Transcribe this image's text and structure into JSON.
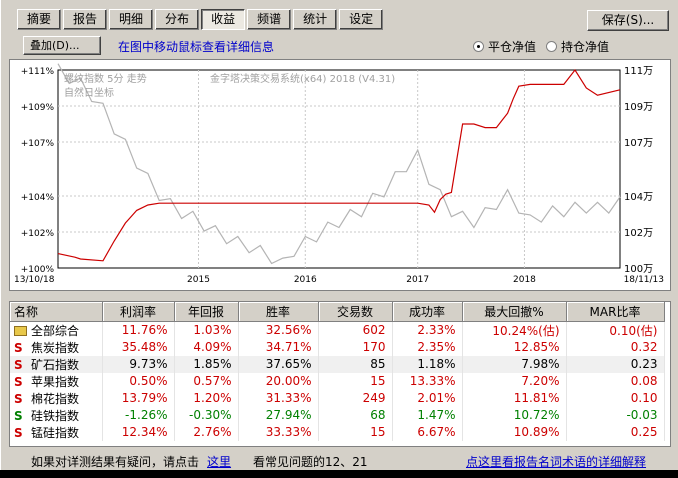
{
  "tabs": [
    {
      "label": "摘要"
    },
    {
      "label": "报告"
    },
    {
      "label": "明细"
    },
    {
      "label": "分布"
    },
    {
      "label": "收益",
      "active": true
    },
    {
      "label": "频谱"
    },
    {
      "label": "统计"
    },
    {
      "label": "设定"
    }
  ],
  "save_label": "保存(S)...",
  "overlay_label": "叠加(D)...",
  "hint_text": "在图中移动鼠标查看详细信息",
  "radio": {
    "option1": "平仓净值",
    "option2": "持仓净值",
    "selected": "option1"
  },
  "chart_data": {
    "type": "line",
    "overlay_title": "螺纹指数 5分 走势",
    "overlay_subtitle": "自然日坐标",
    "watermark": "金字塔决策交易系统(x64) 2018 (V4.31)",
    "left_axis": [
      "+111%",
      "+109%",
      "+107%",
      "+104%",
      "+102%",
      "+100%"
    ],
    "right_axis": [
      "111万",
      "109万",
      "107万",
      "104万",
      "102万",
      "100万"
    ],
    "x_labels": [
      "13/10/18",
      "2015",
      "2016",
      "2017",
      "2018",
      "18/11/13"
    ],
    "ylim": [
      100,
      111
    ],
    "colors": {
      "equity": "#cc0000",
      "price": "#b4b4b4",
      "grid": "#c8c8c8"
    },
    "series": [
      {
        "name": "平仓净值",
        "x": [
          0,
          0.03,
          0.04,
          0.08,
          0.1,
          0.12,
          0.14,
          0.16,
          0.18,
          0.22,
          0.3,
          0.4,
          0.5,
          0.6,
          0.62,
          0.64,
          0.66,
          0.67,
          0.68,
          0.69,
          0.7,
          0.72,
          0.74,
          0.76,
          0.78,
          0.79,
          0.8,
          0.81,
          0.82,
          0.84,
          0.85,
          0.86,
          0.87,
          0.9,
          0.92,
          0.94,
          0.96,
          1.0
        ],
        "y": [
          100.8,
          100.6,
          100.5,
          100.4,
          101.5,
          102.5,
          103.2,
          103.5,
          103.6,
          103.6,
          103.6,
          103.6,
          103.6,
          103.6,
          103.6,
          103.6,
          103.5,
          103.1,
          103.8,
          104.1,
          104.2,
          108.0,
          108.0,
          107.8,
          107.8,
          108.2,
          108.6,
          109.4,
          110.1,
          110.2,
          110.2,
          110.2,
          110.2,
          110.2,
          111.0,
          110.0,
          109.6,
          109.9
        ]
      },
      {
        "name": "螺纹指数",
        "x": [
          0,
          0.02,
          0.04,
          0.06,
          0.08,
          0.1,
          0.12,
          0.14,
          0.16,
          0.18,
          0.2,
          0.22,
          0.24,
          0.26,
          0.28,
          0.3,
          0.32,
          0.34,
          0.36,
          0.38,
          0.4,
          0.42,
          0.44,
          0.46,
          0.48,
          0.5,
          0.52,
          0.54,
          0.56,
          0.58,
          0.6,
          0.62,
          0.64,
          0.66,
          0.68,
          0.7,
          0.72,
          0.74,
          0.76,
          0.78,
          0.8,
          0.82,
          0.84,
          0.86,
          0.88,
          0.9,
          0.92,
          0.94,
          0.96,
          0.98,
          1.0
        ],
        "y": [
          111.0,
          110.6,
          110.2,
          109.6,
          108.8,
          107.8,
          106.8,
          105.9,
          104.9,
          104.1,
          103.5,
          103.1,
          102.8,
          102.4,
          102.0,
          101.7,
          101.4,
          101.2,
          100.9,
          100.6,
          100.2,
          101.0,
          101.4,
          101.8,
          102.2,
          102.6,
          102.9,
          103.2,
          103.8,
          104.3,
          105.0,
          105.7,
          106.2,
          105.0,
          104.0,
          103.2,
          102.8,
          102.6,
          103.0,
          103.6,
          104.0,
          103.4,
          102.6,
          102.9,
          103.1,
          103.2,
          103.3,
          103.4,
          103.3,
          103.4,
          103.6
        ]
      }
    ]
  },
  "table": {
    "columns": [
      "名称",
      "利润率",
      "年回报",
      "胜率",
      "交易数",
      "成功率",
      "最大回撤%",
      "MAR比率"
    ],
    "rows": [
      {
        "icon": "folder",
        "name": "全部综合",
        "cells": [
          "11.76%",
          "1.03%",
          "32.56%",
          "602",
          "2.33%",
          "10.24%(估)",
          "0.10(估)"
        ],
        "color": "red"
      },
      {
        "icon": "S",
        "name": "焦炭指数",
        "cells": [
          "35.48%",
          "4.09%",
          "34.71%",
          "170",
          "2.35%",
          "12.85%",
          "0.32"
        ],
        "color": "red"
      },
      {
        "icon": "S",
        "name": "矿石指数",
        "cells": [
          "9.73%",
          "1.85%",
          "37.65%",
          "85",
          "1.18%",
          "7.98%",
          "0.23"
        ],
        "color": "black"
      },
      {
        "icon": "S",
        "name": "苹果指数",
        "cells": [
          "0.50%",
          "0.57%",
          "20.00%",
          "15",
          "13.33%",
          "7.20%",
          "0.08"
        ],
        "color": "red"
      },
      {
        "icon": "S",
        "name": "棉花指数",
        "cells": [
          "13.79%",
          "1.20%",
          "31.33%",
          "249",
          "2.01%",
          "11.81%",
          "0.10"
        ],
        "color": "red"
      },
      {
        "icon": "S",
        "name": "硅铁指数",
        "cells": [
          "-1.26%",
          "-0.30%",
          "27.94%",
          "68",
          "1.47%",
          "10.72%",
          "-0.03"
        ],
        "color": "green"
      },
      {
        "icon": "S",
        "name": "锰硅指数",
        "cells": [
          "12.34%",
          "2.76%",
          "33.33%",
          "15",
          "6.67%",
          "10.89%",
          "0.25"
        ],
        "color": "red"
      }
    ]
  },
  "footer": {
    "text1": "如果对详测结果有疑问，请点击",
    "link1": "这里",
    "text2": "看常见问题的12、21",
    "link2": "点这里看报告名词术语的详细解释"
  }
}
